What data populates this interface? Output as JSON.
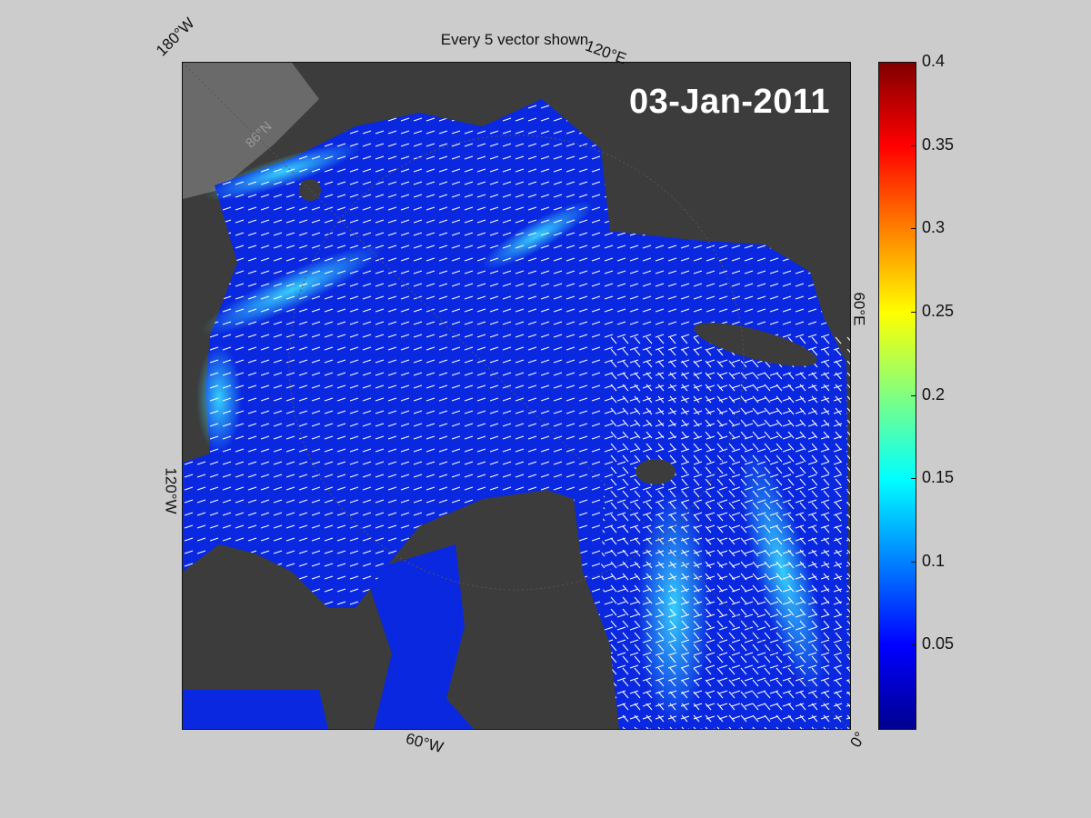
{
  "title": "Every 5 vector shown",
  "date": "03-Jan-2011",
  "lon_labels": {
    "w180": "180°W",
    "e120": "120°E",
    "w120": "120°W",
    "e60": "60°E",
    "w60": "60°W",
    "zero": "0°"
  },
  "lat_label": "86°N",
  "colorbar": {
    "ticks": [
      "0.4",
      "0.35",
      "0.3",
      "0.25",
      "0.2",
      "0.15",
      "0.1",
      "0.05"
    ],
    "range": [
      0,
      0.4
    ]
  },
  "colors": {
    "land": "#3c3c3c",
    "ice_fast": "#00ffff",
    "ice_slow": "#0a1ecc"
  }
}
